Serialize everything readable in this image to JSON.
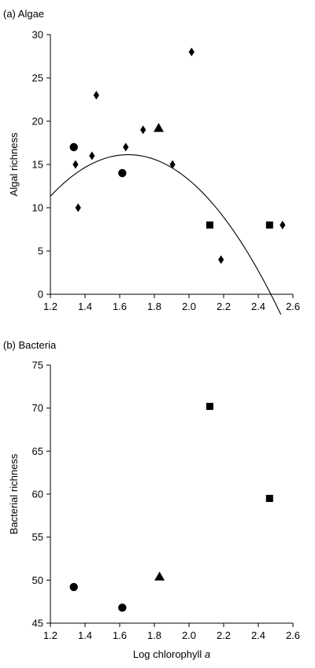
{
  "chart_data": [
    {
      "type": "scatter",
      "title": "(a) Algae",
      "xlabel": "",
      "ylabel": "Algal richness",
      "xlim": [
        1.2,
        2.6
      ],
      "ylim": [
        0,
        30
      ],
      "xticks": [
        "1.2",
        "1.4",
        "1.6",
        "1.8",
        "2.0",
        "2.2",
        "2.4",
        "2.6"
      ],
      "yticks": [
        "0",
        "5",
        "10",
        "15",
        "20",
        "25",
        "30"
      ],
      "grid": false,
      "series": [
        {
          "marker": "diamond",
          "points": [
            [
              1.345,
              15
            ],
            [
              1.36,
              10
            ],
            [
              1.44,
              16
            ],
            [
              1.465,
              23
            ],
            [
              1.635,
              17
            ],
            [
              1.735,
              19
            ],
            [
              1.905,
              15
            ],
            [
              2.015,
              28
            ],
            [
              2.185,
              4
            ],
            [
              2.54,
              8
            ]
          ]
        },
        {
          "marker": "circle",
          "points": [
            [
              1.335,
              17
            ],
            [
              1.615,
              14
            ]
          ]
        },
        {
          "marker": "triangle",
          "points": [
            [
              1.825,
              19.2
            ]
          ]
        },
        {
          "marker": "square",
          "points": [
            [
              2.12,
              8
            ],
            [
              2.465,
              8
            ]
          ]
        }
      ],
      "fit_curve": {
        "type": "quadratic",
        "coefficients": [
          -48.6,
          78.5,
          -23.8
        ],
        "x_range": [
          1.2,
          2.53
        ]
      }
    },
    {
      "type": "scatter",
      "title": "(b) Bacteria",
      "xlabel": "Log chlorophyll a",
      "ylabel": "Bacterial richness",
      "xlim": [
        1.2,
        2.6
      ],
      "ylim": [
        45,
        75
      ],
      "xticks": [
        "1.2",
        "1.4",
        "1.6",
        "1.8",
        "2.0",
        "2.2",
        "2.4",
        "2.6"
      ],
      "yticks": [
        "45",
        "50",
        "55",
        "60",
        "65",
        "70",
        "75"
      ],
      "grid": false,
      "series": [
        {
          "marker": "circle",
          "points": [
            [
              1.335,
              49.2
            ],
            [
              1.615,
              46.8
            ]
          ]
        },
        {
          "marker": "triangle",
          "points": [
            [
              1.83,
              50.4
            ]
          ]
        },
        {
          "marker": "square",
          "points": [
            [
              2.12,
              70.2
            ],
            [
              2.465,
              59.5
            ]
          ]
        }
      ]
    }
  ]
}
